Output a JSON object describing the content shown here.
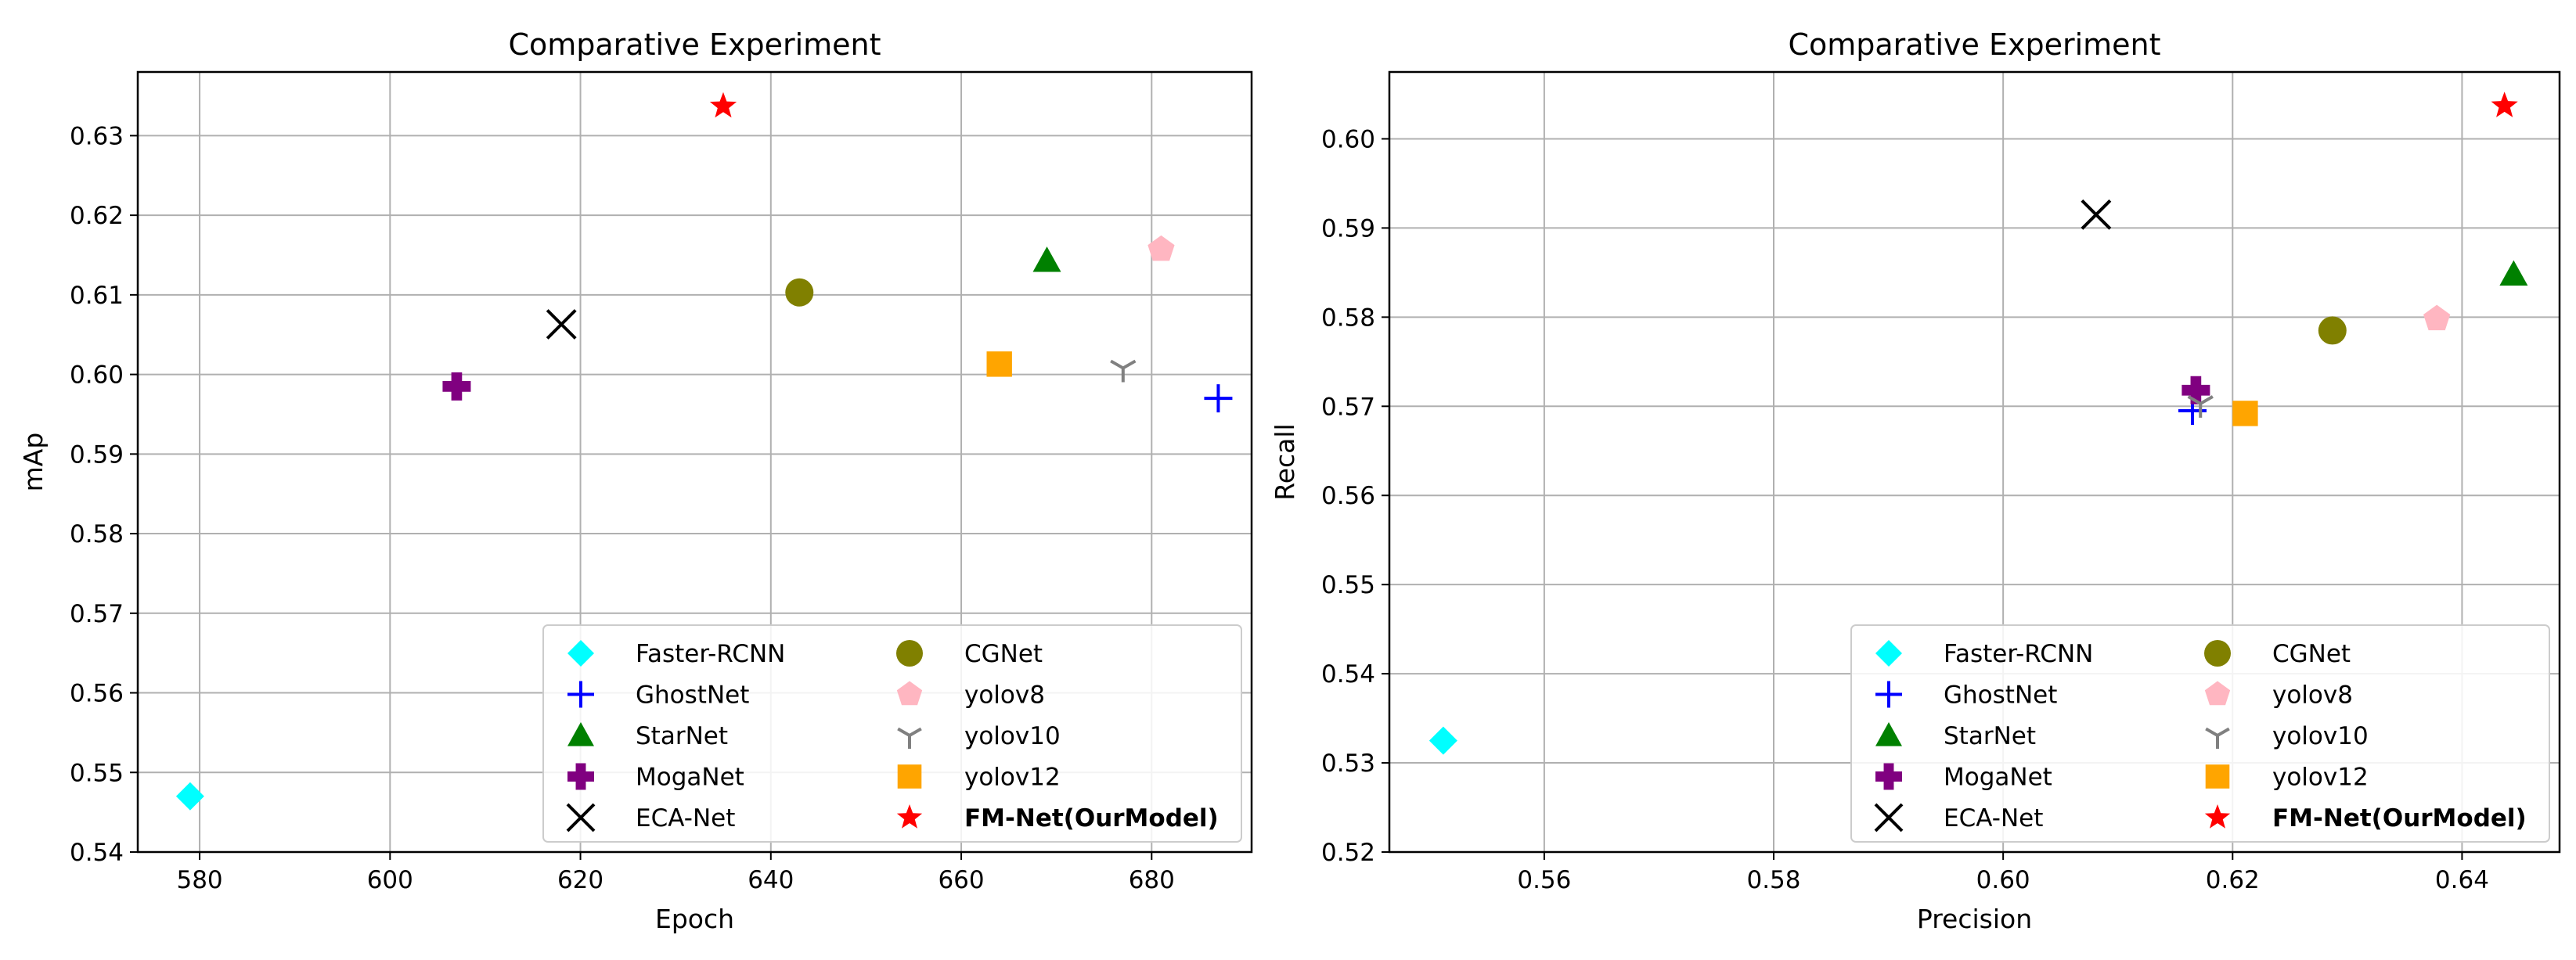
{
  "chart_data": [
    {
      "type": "scatter",
      "title": "Comparative Experiment",
      "xlabel": "Epoch",
      "ylabel": "mAp",
      "xlim": [
        573.5,
        690.5
      ],
      "ylim": [
        0.54,
        0.638
      ],
      "xticks": [
        580,
        600,
        620,
        640,
        660,
        680
      ],
      "yticks": [
        0.54,
        0.55,
        0.56,
        0.57,
        0.58,
        0.59,
        0.6,
        0.61,
        0.62,
        0.63
      ],
      "xtick_labels": [
        "580",
        "600",
        "620",
        "640",
        "660",
        "680"
      ],
      "ytick_labels": [
        "0.54",
        "0.55",
        "0.56",
        "0.57",
        "0.58",
        "0.59",
        "0.60",
        "0.61",
        "0.62",
        "0.63"
      ],
      "grid": true,
      "legend_position": "lower-right",
      "series": [
        {
          "name": "Faster-RCNN",
          "marker": "diamond",
          "color": "#00ffff",
          "x": 579,
          "y": 0.547
        },
        {
          "name": "GhostNet",
          "marker": "plus",
          "color": "#0000ff",
          "x": 687,
          "y": 0.597
        },
        {
          "name": "StarNet",
          "marker": "triangle",
          "color": "#008000",
          "x": 669,
          "y": 0.6143
        },
        {
          "name": "MogaNet",
          "marker": "filled-plus",
          "color": "#800080",
          "x": 607,
          "y": 0.5985
        },
        {
          "name": "ECA-Net",
          "marker": "x",
          "color": "#000000",
          "x": 618,
          "y": 0.6063
        },
        {
          "name": "CGNet",
          "marker": "circle",
          "color": "#808000",
          "x": 643,
          "y": 0.6103
        },
        {
          "name": "yolov8",
          "marker": "pentagon",
          "color": "#ffb6c1",
          "x": 681,
          "y": 0.6157
        },
        {
          "name": "yolov10",
          "marker": "tri-down",
          "color": "#808080",
          "x": 677,
          "y": 0.6008
        },
        {
          "name": "yolov12",
          "marker": "square",
          "color": "#ffa500",
          "x": 664,
          "y": 0.6013
        },
        {
          "name": "FM-Net(OurModel)",
          "marker": "star",
          "color": "#ff0000",
          "x": 635,
          "y": 0.6337
        }
      ]
    },
    {
      "type": "scatter",
      "title": "Comparative Experiment",
      "xlabel": "Precision",
      "ylabel": "Recall",
      "xlim": [
        0.5465,
        0.6485
      ],
      "ylim": [
        0.52,
        0.6075
      ],
      "xticks": [
        0.56,
        0.58,
        0.6,
        0.62,
        0.64
      ],
      "yticks": [
        0.52,
        0.53,
        0.54,
        0.55,
        0.56,
        0.57,
        0.58,
        0.59,
        0.6
      ],
      "xtick_labels": [
        "0.56",
        "0.58",
        "0.60",
        "0.62",
        "0.64"
      ],
      "ytick_labels": [
        "0.52",
        "0.53",
        "0.54",
        "0.55",
        "0.56",
        "0.57",
        "0.58",
        "0.59",
        "0.60"
      ],
      "grid": true,
      "legend_position": "lower-right",
      "series": [
        {
          "name": "Faster-RCNN",
          "marker": "diamond",
          "color": "#00ffff",
          "x": 0.5512,
          "y": 0.5325
        },
        {
          "name": "GhostNet",
          "marker": "plus",
          "color": "#0000ff",
          "x": 0.6165,
          "y": 0.5695
        },
        {
          "name": "StarNet",
          "marker": "triangle",
          "color": "#008000",
          "x": 0.6445,
          "y": 0.5848
        },
        {
          "name": "MogaNet",
          "marker": "filled-plus",
          "color": "#800080",
          "x": 0.6168,
          "y": 0.5718
        },
        {
          "name": "ECA-Net",
          "marker": "x",
          "color": "#000000",
          "x": 0.6081,
          "y": 0.5915
        },
        {
          "name": "CGNet",
          "marker": "circle",
          "color": "#808000",
          "x": 0.6287,
          "y": 0.5785
        },
        {
          "name": "yolov8",
          "marker": "pentagon",
          "color": "#ffb6c1",
          "x": 0.6378,
          "y": 0.5798
        },
        {
          "name": "yolov10",
          "marker": "tri-down",
          "color": "#808080",
          "x": 0.6172,
          "y": 0.5703
        },
        {
          "name": "yolov12",
          "marker": "square",
          "color": "#ffa500",
          "x": 0.6211,
          "y": 0.5692
        },
        {
          "name": "FM-Net(OurModel)",
          "marker": "star",
          "color": "#ff0000",
          "x": 0.6437,
          "y": 0.6037
        }
      ]
    }
  ]
}
